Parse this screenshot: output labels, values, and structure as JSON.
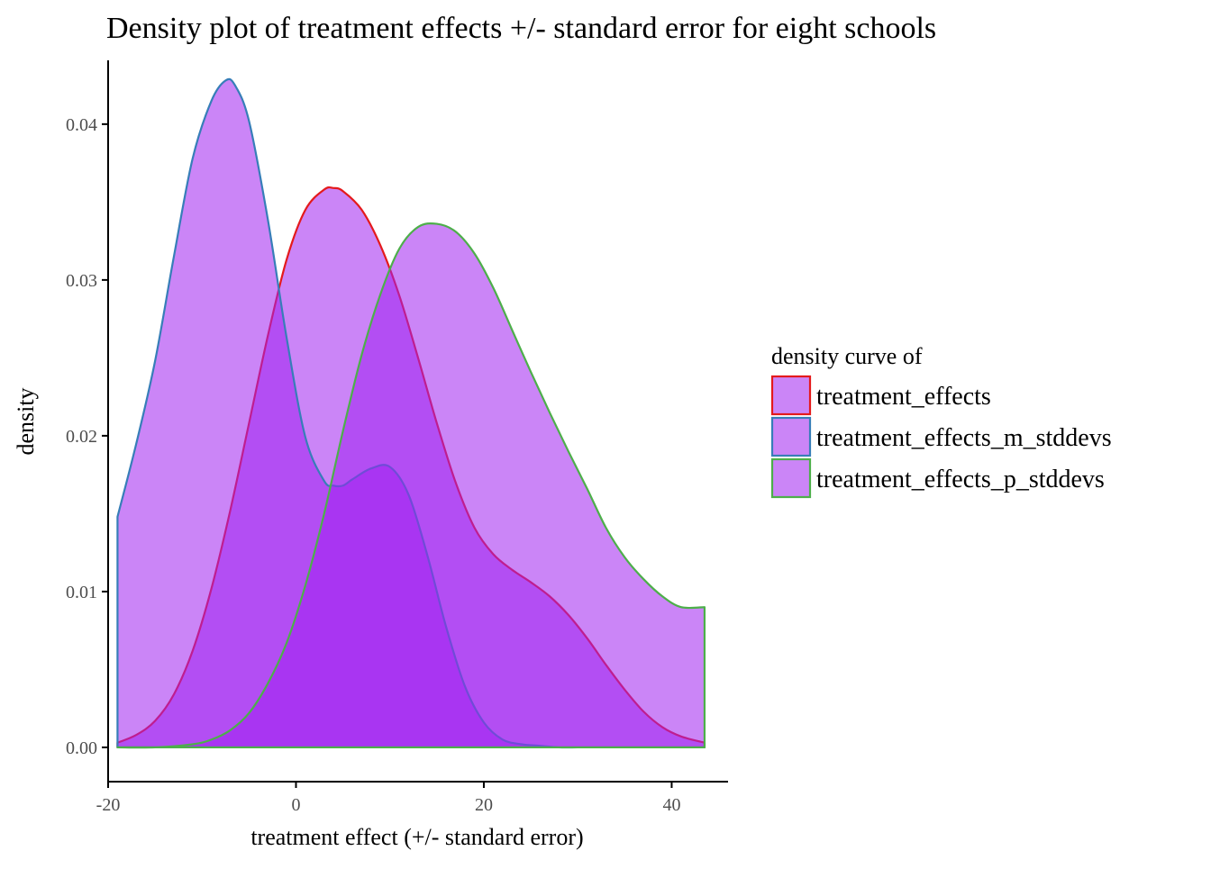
{
  "chart_data": {
    "type": "area",
    "title": "Density plot of treatment effects +/- standard error for eight schools",
    "xlabel": "treatment effect (+/- standard error)",
    "ylabel": "density",
    "xlim": [
      -20,
      46
    ],
    "ylim": [
      -0.0022,
      0.0445
    ],
    "xticks": [
      -20,
      0,
      20,
      40
    ],
    "xtick_labels": [
      "-20",
      "0",
      "20",
      "40"
    ],
    "yticks": [
      0.0,
      0.01,
      0.02,
      0.03,
      0.04
    ],
    "ytick_labels": [
      "0.00",
      "0.01",
      "0.02",
      "0.03",
      "0.04"
    ],
    "grid": false,
    "fill_color": "#a020f0",
    "fill_opacity": 0.55,
    "legend": {
      "title": "density curve of",
      "position": "right",
      "items": [
        {
          "label": "treatment_effects",
          "color": "#e41a1c"
        },
        {
          "label": "treatment_effects_m_stddevs",
          "color": "#377eb8"
        },
        {
          "label": "treatment_effects_p_stddevs",
          "color": "#4daf4a"
        }
      ]
    },
    "series": [
      {
        "name": "treatment_effects",
        "color": "#e41a1c",
        "x": [
          -19,
          -17,
          -15,
          -13,
          -11,
          -9,
          -7,
          -5,
          -3,
          -1,
          1,
          3,
          4,
          5,
          7,
          9,
          11,
          13,
          15,
          17,
          19,
          21,
          23,
          25,
          27,
          29,
          31,
          33,
          35,
          37,
          39,
          41,
          43.5
        ],
        "y": [
          0.0003,
          0.0008,
          0.0017,
          0.0034,
          0.0062,
          0.0102,
          0.0152,
          0.0208,
          0.0264,
          0.0313,
          0.0345,
          0.0358,
          0.0359,
          0.0357,
          0.0345,
          0.0322,
          0.029,
          0.025,
          0.0208,
          0.017,
          0.0141,
          0.0124,
          0.0114,
          0.0106,
          0.0097,
          0.0085,
          0.007,
          0.0053,
          0.0037,
          0.0023,
          0.0013,
          0.0007,
          0.0003
        ]
      },
      {
        "name": "treatment_effects_m_stddevs",
        "color": "#377eb8",
        "x": [
          -19,
          -17,
          -15,
          -13,
          -11,
          -9,
          -7.5,
          -6.5,
          -5,
          -3,
          -1,
          1,
          3,
          4,
          5,
          6,
          8,
          10,
          12,
          14,
          16,
          18,
          20,
          22,
          24,
          26,
          28,
          30,
          32,
          34,
          36,
          38,
          40,
          43.5
        ],
        "y": [
          0.0148,
          0.0195,
          0.0248,
          0.0315,
          0.0378,
          0.0415,
          0.0428,
          0.0425,
          0.0402,
          0.0339,
          0.0263,
          0.0199,
          0.0171,
          0.0168,
          0.0168,
          0.0172,
          0.0179,
          0.018,
          0.0162,
          0.0123,
          0.0077,
          0.0039,
          0.0016,
          0.0005,
          0.0002,
          0.0001,
          0.0,
          0.0,
          0.0,
          0.0,
          0.0,
          0.0,
          0.0,
          0.0
        ]
      },
      {
        "name": "treatment_effects_p_stddevs",
        "color": "#4daf4a",
        "x": [
          -19,
          -15,
          -11,
          -9,
          -7,
          -5,
          -3,
          -1,
          1,
          3,
          5,
          7,
          9,
          11,
          13,
          15,
          17,
          19,
          21,
          23,
          25,
          27,
          29,
          31,
          33,
          35,
          37,
          39,
          41,
          43.5
        ],
        "y": [
          0.0,
          0.0,
          0.0002,
          0.0005,
          0.0011,
          0.0022,
          0.0041,
          0.0067,
          0.0104,
          0.015,
          0.0203,
          0.0252,
          0.0291,
          0.032,
          0.0334,
          0.0336,
          0.0331,
          0.0317,
          0.0295,
          0.0268,
          0.0241,
          0.0215,
          0.019,
          0.0166,
          0.0141,
          0.0122,
          0.0108,
          0.0097,
          0.009,
          0.009
        ]
      }
    ]
  }
}
